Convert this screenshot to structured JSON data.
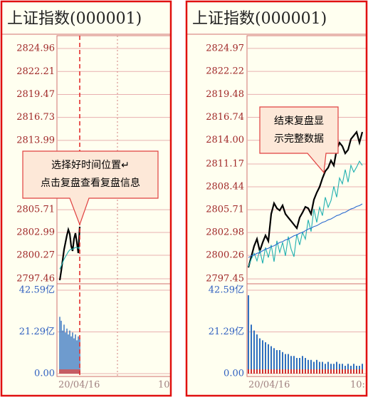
{
  "chart_data": [
    {
      "type": "line",
      "title": "上证指数(000001)",
      "ylim": [
        2796.95,
        2825.81
      ],
      "yticks": [
        2824.96,
        2822.21,
        2819.47,
        2816.73,
        2813.99,
        2805.71,
        2802.99,
        2800.27,
        2797.46
      ],
      "y2lim": [
        0,
        42.59
      ],
      "y2ticks": [
        {
          "value": 42.59,
          "label": "42.59亿"
        },
        {
          "value": 21.29,
          "label": "21.29亿"
        },
        {
          "value": 0,
          "label": "0.00"
        }
      ],
      "xtick_labels": [
        "20/04/16",
        "10"
      ],
      "annotation": [
        "选择好时间位置↵",
        "点击复盘查看复盘信息"
      ],
      "series": [
        {
          "color": "#000000",
          "values": [
            2797.29,
            2798.4,
            2799.67,
            2800.95,
            2801.8,
            2802.65,
            2803.33,
            2802.82,
            2801.38,
            2800.78,
            2802.23,
            2802.91,
            2801.8,
            2800.53,
            2803.68
          ]
        },
        {
          "color": "#20b0b0",
          "values": [
            2798.6,
            2799.0,
            2799.4,
            2799.8,
            2800.1,
            2800.4,
            2800.7,
            2800.9,
            2801.0,
            2801.0,
            2801.1,
            2801.2,
            2801.2,
            2801.1,
            2801.3
          ]
        },
        {
          "color": "#3070c0",
          "axis": "y2",
          "values": [
            29,
            27,
            22,
            25,
            21,
            23,
            20,
            22,
            19,
            21,
            18,
            20,
            17,
            19,
            18
          ]
        }
      ]
    },
    {
      "type": "line",
      "title": "上证指数(000001)",
      "ylim": [
        2796.95,
        2825.81
      ],
      "yticks": [
        2824.97,
        2822.22,
        2819.48,
        2816.74,
        {
          "value": 2814.0,
          "label": "2814.00"
        },
        2811.17,
        2808.44,
        2805.71,
        2802.98,
        2800.26,
        2797.45
      ],
      "y2lim": [
        0,
        42.59
      ],
      "y2ticks": [
        {
          "value": 42.59,
          "label": "42.59亿"
        },
        {
          "value": 21.29,
          "label": "21.29亿"
        },
        {
          "value": 0,
          "label": "0.00"
        }
      ],
      "xtick_labels": [
        "20/04/16",
        "10:"
      ],
      "annotation": [
        "结束复盘显",
        "示完整数据"
      ],
      "series": [
        {
          "color": "#000000",
          "values": [
            2798.81,
            2800.09,
            2801.37,
            2802.22,
            2800.77,
            2801.79,
            2802.64,
            2801.96,
            2805.2,
            2806.48,
            2805.88,
            2805.62,
            2806.22,
            2805.2,
            2804.77,
            2804.35,
            2803.92,
            2803.5,
            2804.77,
            2805.37,
            2806.05,
            2805.88,
            2805.2,
            2806.9,
            2807.75,
            2808.43,
            2809.46,
            2810.31,
            2810.73,
            2811.58,
            2810.99,
            2812.86,
            2813.71,
            2813.29,
            2812.44,
            2812.86,
            2814.14,
            2814.56,
            2814.99,
            2813.71,
            2814.99
          ]
        },
        {
          "color": "#20b0b0",
          "values": [
            2798.9,
            2799.8,
            2800.5,
            2799.6,
            2800.9,
            2799.3,
            2801.2,
            2800.0,
            2801.5,
            2799.5,
            2802.0,
            2800.6,
            2801.8,
            2800.2,
            2802.5,
            2801.0,
            2800.1,
            2802.8,
            2801.5,
            2803.0,
            2802.2,
            2804.5,
            2803.1,
            2805.8,
            2804.2,
            2806.0,
            2805.0,
            2807.2,
            2806.0,
            2806.8,
            2808.5,
            2807.2,
            2809.5,
            2808.8,
            2810.5,
            2809.0,
            2811.0,
            2810.2,
            2810.8,
            2811.5,
            2811.0
          ]
        },
        {
          "color": "#2a6ad0",
          "values": [
            2800.0,
            2800.2,
            2800.3,
            2800.5,
            2800.6,
            2800.8,
            2801.0,
            2801.1,
            2801.3,
            2801.4,
            2801.6,
            2801.8,
            2801.9,
            2802.1,
            2802.2,
            2802.4,
            2802.6,
            2802.7,
            2802.9,
            2803.0,
            2803.2,
            2803.4,
            2803.5,
            2803.7,
            2803.8,
            2804.0,
            2804.2,
            2804.3,
            2804.5,
            2804.6,
            2804.8,
            2805.0,
            2805.1,
            2805.3,
            2805.4,
            2805.6,
            2805.8,
            2805.9,
            2806.1,
            2806.2,
            2806.4
          ]
        },
        {
          "color": "#3070c0",
          "axis": "y2",
          "values": [
            40,
            25,
            22,
            20,
            18,
            17,
            16,
            15,
            14,
            13,
            12,
            12,
            11,
            10,
            10,
            9,
            9,
            8,
            8,
            9,
            8,
            7,
            7,
            6,
            7,
            6,
            6,
            5,
            6,
            5,
            5,
            6,
            5,
            5,
            4,
            5,
            4,
            5,
            4,
            4,
            5
          ]
        }
      ]
    }
  ]
}
